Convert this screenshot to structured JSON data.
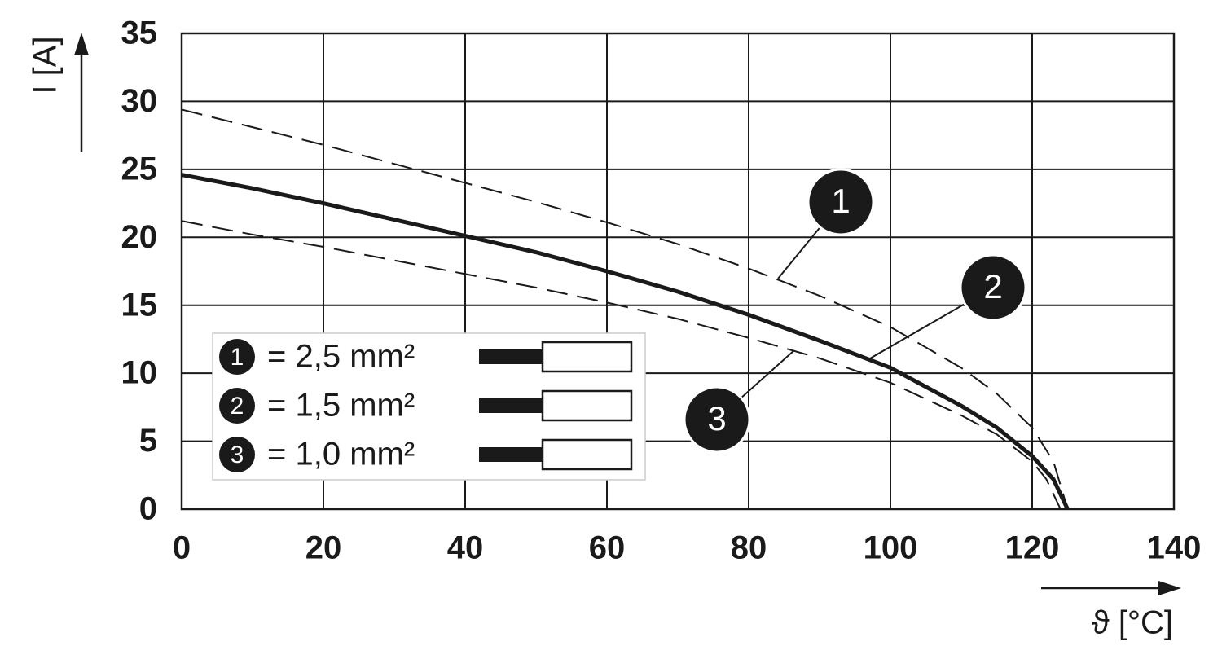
{
  "chart_data": {
    "type": "line",
    "x_label": "ϑ [°C]",
    "y_label": "I [A]",
    "xlim": [
      0,
      140
    ],
    "xticks": [
      0,
      20,
      40,
      60,
      80,
      100,
      120,
      140
    ],
    "ylim": [
      0,
      35
    ],
    "yticks": [
      0,
      5,
      10,
      15,
      20,
      25,
      30,
      35
    ],
    "grid": true,
    "series": [
      {
        "marker": "1",
        "name": "= 2,5 mm²",
        "color": "#1a1a1a",
        "dashed": true,
        "x": [
          0,
          10,
          20,
          30,
          40,
          50,
          60,
          70,
          80,
          90,
          100,
          110,
          115,
          120,
          123,
          125
        ],
        "values": [
          29.4,
          28.1,
          26.8,
          25.4,
          24.0,
          22.6,
          21.1,
          19.5,
          17.7,
          15.7,
          13.4,
          10.4,
          8.5,
          6.0,
          3.5,
          0
        ]
      },
      {
        "marker": "2",
        "name": "= 1,5 mm²",
        "color": "#1a1a1a",
        "dashed": false,
        "x": [
          0,
          10,
          20,
          30,
          40,
          50,
          60,
          70,
          80,
          90,
          100,
          110,
          115,
          120,
          123,
          125
        ],
        "values": [
          24.6,
          23.6,
          22.5,
          21.3,
          20.1,
          18.9,
          17.5,
          16.0,
          14.3,
          12.4,
          10.4,
          7.6,
          6.0,
          3.9,
          2.2,
          0
        ]
      },
      {
        "marker": "3",
        "name": "= 1,0 mm²",
        "color": "#1a1a1a",
        "dashed": true,
        "x": [
          0,
          10,
          20,
          30,
          40,
          50,
          60,
          70,
          80,
          90,
          100,
          110,
          115,
          120,
          122,
          124
        ],
        "values": [
          21.2,
          20.2,
          19.3,
          18.3,
          17.3,
          16.3,
          15.2,
          14.0,
          12.6,
          11.1,
          9.3,
          6.9,
          5.5,
          3.5,
          2.2,
          0
        ]
      }
    ]
  }
}
